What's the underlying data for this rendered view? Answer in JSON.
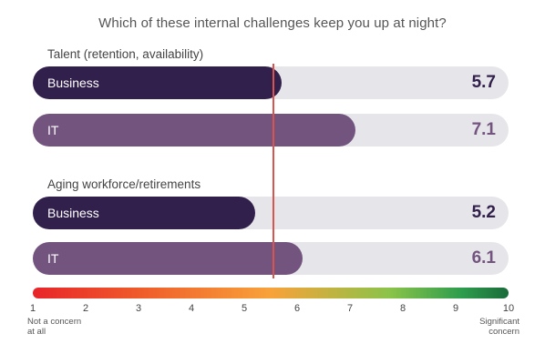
{
  "chart_data": {
    "type": "bar",
    "orientation": "horizontal",
    "title": "Which of these internal challenges keep you up at night?",
    "xlim": [
      1,
      10
    ],
    "ticks": [
      1,
      2,
      3,
      4,
      5,
      6,
      7,
      8,
      9,
      10
    ],
    "scale_min_label": "Not a concern at all",
    "scale_max_label": "Significant concern",
    "reference_line": 5.55,
    "groups": [
      {
        "label": "Talent (retention, availability)",
        "bars": [
          {
            "name": "Business",
            "value": 5.7,
            "display": "5.7"
          },
          {
            "name": "IT",
            "value": 7.1,
            "display": "7.1"
          }
        ]
      },
      {
        "label": "Aging workforce/retirements",
        "bars": [
          {
            "name": "Business",
            "value": 5.2,
            "display": "5.2"
          },
          {
            "name": "IT",
            "value": 6.1,
            "display": "6.1"
          }
        ]
      }
    ],
    "colors": {
      "Business": "#32204c",
      "IT": "#73547f",
      "track": "#e6e6ea",
      "reference_line": "#d9534f"
    }
  }
}
